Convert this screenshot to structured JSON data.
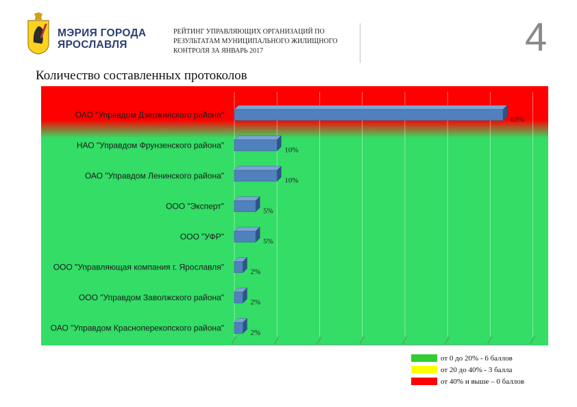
{
  "header": {
    "logo_lines": [
      "МЭРИЯ ГОРОДА",
      "ЯРОСЛАВЛЯ"
    ],
    "report_title": "РЕЙТИНГ УПРАВЛЯЮЩИХ ОРГАНИЗАЦИЙ ПО РЕЗУЛЬТАТАМ МУНИЦИПАЛЬНОГО ЖИЛИЩНОГО КОНТРОЛЯ ЗА ЯНВАРЬ 2017",
    "slide_number": "4"
  },
  "chart_data": {
    "type": "bar",
    "orientation": "horizontal",
    "title": "Количество составленных протоколов",
    "categories": [
      "ОАО \"Управдом Дзержинского района\"",
      "НАО \"Управдом Фрунзенского района\"",
      "ОАО \"Управдом Ленинского района\"",
      "ООО \"Эксперт\"",
      "ООО \"УФР\"",
      "ООО \"Управляющая компания г. Ярославля\"",
      "ООО \"Управдом Заволжского района\"",
      "ОАО \"Управдом Красноперекопского района\""
    ],
    "values": [
      63,
      10,
      10,
      5,
      5,
      2,
      2,
      2
    ],
    "data_labels": [
      "63%",
      "10%",
      "10%",
      "5%",
      "5%",
      "2%",
      "2%",
      "2%"
    ],
    "unit": "%",
    "xlim": [
      0,
      70
    ],
    "bar_color": "#4f81bd",
    "grid": true,
    "background_zones": [
      {
        "color": "#ff0000",
        "from_category": 0,
        "to_category": 0
      },
      {
        "color": "#33dd66",
        "from_category": 1,
        "to_category": 7
      }
    ]
  },
  "legend": {
    "position": "bottom-right",
    "items": [
      {
        "color": "#33cc33",
        "label": "от 0 до 20% - 6 баллов"
      },
      {
        "color": "#ffff00",
        "label": "от 20 до 40% - 3 балла"
      },
      {
        "color": "#ff0000",
        "label": "от 40% и выше – 0 баллов"
      }
    ]
  }
}
